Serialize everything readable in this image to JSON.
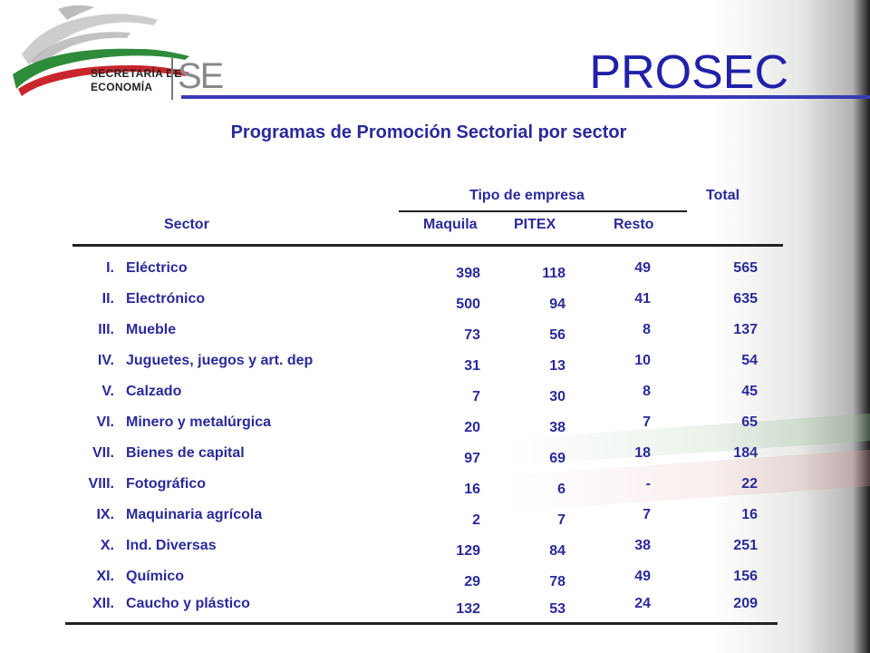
{
  "logo": {
    "line1": "SECRETARÍA DE",
    "line2": "ECONOMÍA",
    "mark": "SE",
    "colors": {
      "green": "#2e8b3a",
      "red": "#c8262c",
      "gray": "#8a8a8a"
    }
  },
  "header": {
    "title": "PROSEC",
    "title_color": "#2020a8"
  },
  "table": {
    "caption": "Programas de Promoción Sectorial por sector",
    "group_header": "Tipo de empresa",
    "total_header": "Total",
    "columns": {
      "sector": "Sector",
      "maquila": "Maquila",
      "pitex": "PITEX",
      "resto": "Resto"
    },
    "rows": [
      {
        "num": "I.",
        "name": "Eléctrico",
        "maquila": "398",
        "pitex": "118",
        "resto": "49",
        "total": "565"
      },
      {
        "num": "II.",
        "name": "Electrónico",
        "maquila": "500",
        "pitex": "94",
        "resto": "41",
        "total": "635"
      },
      {
        "num": "III.",
        "name": "Mueble",
        "maquila": "73",
        "pitex": "56",
        "resto": "8",
        "total": "137"
      },
      {
        "num": "IV.",
        "name": "Juguetes, juegos y art. dep",
        "maquila": "31",
        "pitex": "13",
        "resto": "10",
        "total": "54"
      },
      {
        "num": "V.",
        "name": "Calzado",
        "maquila": "7",
        "pitex": "30",
        "resto": "8",
        "total": "45"
      },
      {
        "num": "VI.",
        "name": "Minero y metalúrgica",
        "maquila": "20",
        "pitex": "38",
        "resto": "7",
        "total": "65"
      },
      {
        "num": "VII.",
        "name": "Bienes de capital",
        "maquila": "97",
        "pitex": "69",
        "resto": "18",
        "total": "184"
      },
      {
        "num": "VIII.",
        "name": "Fotográfico",
        "maquila": "16",
        "pitex": "6",
        "resto": "-",
        "total": "22"
      },
      {
        "num": "IX.",
        "name": "Maquinaria agrícola",
        "maquila": "2",
        "pitex": "7",
        "resto": "7",
        "total": "16"
      },
      {
        "num": "X.",
        "name": "Ind. Diversas",
        "maquila": "129",
        "pitex": "84",
        "resto": "38",
        "total": "251"
      },
      {
        "num": "XI.",
        "name": "Químico",
        "maquila": "29",
        "pitex": "78",
        "resto": "49",
        "total": "156"
      },
      {
        "num": "XII.",
        "name": "Caucho y plástico",
        "maquila": "132",
        "pitex": "53",
        "resto": "24",
        "total": "209"
      }
    ]
  }
}
